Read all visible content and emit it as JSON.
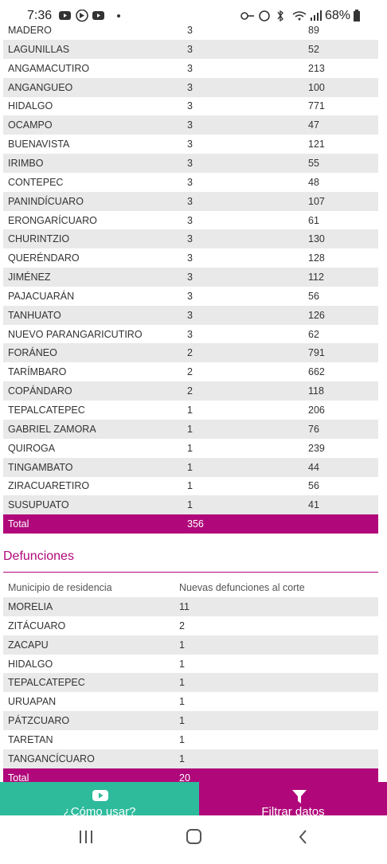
{
  "status_bar": {
    "time": "7:36",
    "battery": "68%"
  },
  "cases_table": {
    "rows": [
      [
        "MADERO",
        3,
        89
      ],
      [
        "LAGUNILLAS",
        3,
        52
      ],
      [
        "ANGAMACUTIRO",
        3,
        213
      ],
      [
        "ANGANGUEO",
        3,
        100
      ],
      [
        "HIDALGO",
        3,
        771
      ],
      [
        "OCAMPO",
        3,
        47
      ],
      [
        "BUENAVISTA",
        3,
        121
      ],
      [
        "IRIMBO",
        3,
        55
      ],
      [
        "CONTEPEC",
        3,
        48
      ],
      [
        "PANINDÍCUARO",
        3,
        107
      ],
      [
        "ERONGARÍCUARO",
        3,
        61
      ],
      [
        "CHURINTZIO",
        3,
        130
      ],
      [
        "QUERÉNDARO",
        3,
        128
      ],
      [
        "JIMÉNEZ",
        3,
        112
      ],
      [
        "PAJACUARÁN",
        3,
        56
      ],
      [
        "TANHUATO",
        3,
        126
      ],
      [
        "NUEVO PARANGARICUTIRO",
        3,
        62
      ],
      [
        "FORÁNEO",
        2,
        791
      ],
      [
        "TARÍMBARO",
        2,
        662
      ],
      [
        "COPÁNDARO",
        2,
        118
      ],
      [
        "TEPALCATEPEC",
        1,
        206
      ],
      [
        "GABRIEL ZAMORA",
        1,
        76
      ],
      [
        "QUIROGA",
        1,
        239
      ],
      [
        "TINGAMBATO",
        1,
        44
      ],
      [
        "ZIRACUARETIRO",
        1,
        56
      ],
      [
        "SUSUPUATO",
        1,
        41
      ]
    ],
    "total": [
      "Total",
      356
    ]
  },
  "deaths_section": {
    "title": "Defunciones",
    "header": [
      "Municipio de residencia",
      "Nuevas defunciones al corte"
    ],
    "rows": [
      [
        "MORELIA",
        11
      ],
      [
        "ZITÁCUARO",
        2
      ],
      [
        "ZACAPU",
        1
      ],
      [
        "HIDALGO",
        1
      ],
      [
        "TEPALCATEPEC",
        1
      ],
      [
        "URUAPAN",
        1
      ],
      [
        "PÁTZCUARO",
        1
      ],
      [
        "TARETAN",
        1
      ],
      [
        "TANGANCÍCUARO",
        1
      ]
    ],
    "total": [
      "Total",
      20
    ]
  },
  "buttons": {
    "help": "¿Cómo usar?",
    "filter": "Filtrar datos"
  }
}
